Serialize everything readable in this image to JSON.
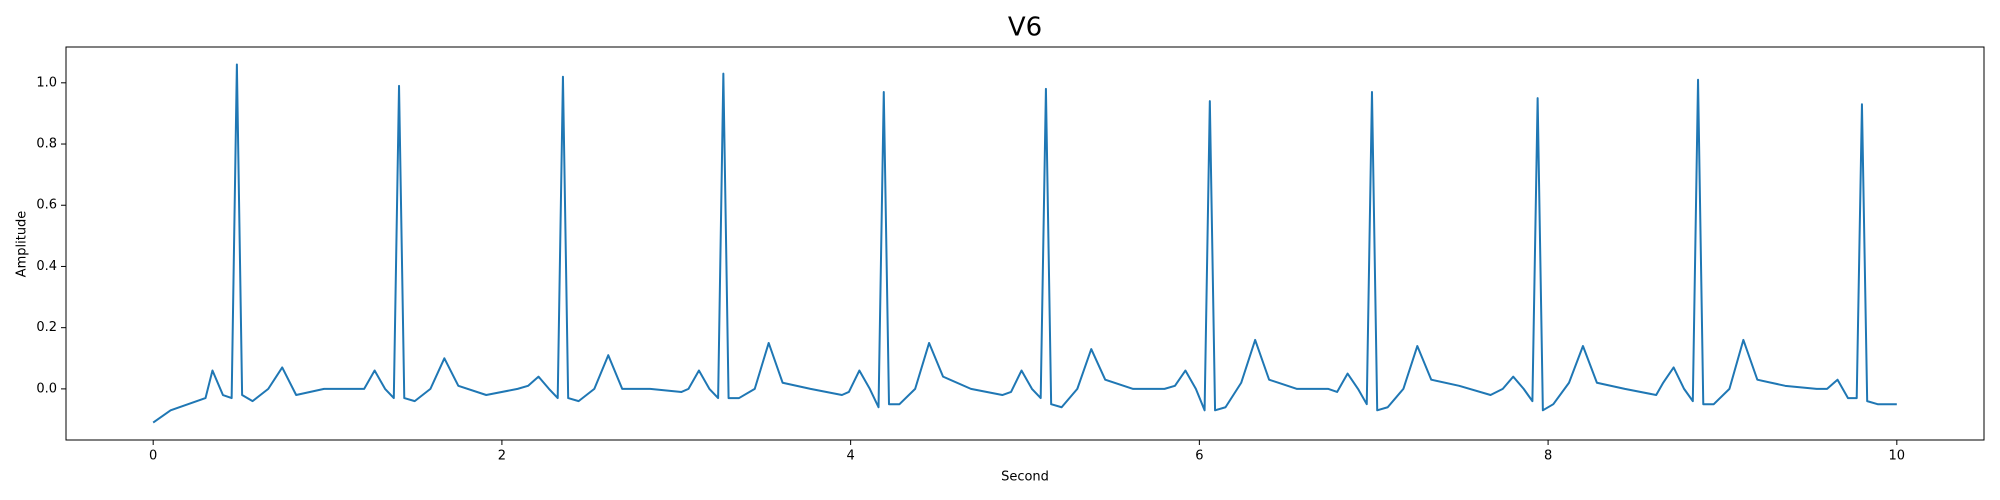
{
  "chart_data": {
    "type": "line",
    "title": "V6",
    "xlabel": "Second",
    "ylabel": "Amplitude",
    "color": "#1f77b4",
    "x": [
      0,
      0.1,
      0.2,
      0.3,
      0.34,
      0.4,
      0.45,
      0.48,
      0.51,
      0.57,
      0.66,
      0.74,
      0.82,
      0.98,
      1.16,
      1.21,
      1.27,
      1.33,
      1.38,
      1.41,
      1.44,
      1.5,
      1.59,
      1.67,
      1.75,
      1.91,
      2.09,
      2.15,
      2.21,
      2.27,
      2.32,
      2.35,
      2.38,
      2.44,
      2.53,
      2.61,
      2.69,
      2.85,
      3.03,
      3.07,
      3.13,
      3.19,
      3.24,
      3.27,
      3.3,
      3.36,
      3.45,
      3.53,
      3.61,
      3.77,
      3.95,
      3.99,
      4.05,
      4.11,
      4.16,
      4.19,
      4.22,
      4.28,
      4.37,
      4.45,
      4.53,
      4.69,
      4.87,
      4.92,
      4.98,
      5.04,
      5.09,
      5.12,
      5.15,
      5.21,
      5.3,
      5.38,
      5.46,
      5.62,
      5.8,
      5.86,
      5.92,
      5.98,
      6.03,
      6.06,
      6.09,
      6.15,
      6.24,
      6.32,
      6.4,
      6.56,
      6.74,
      6.79,
      6.85,
      6.91,
      6.96,
      6.99,
      7.02,
      7.08,
      7.17,
      7.25,
      7.33,
      7.49,
      7.67,
      7.74,
      7.8,
      7.86,
      7.91,
      7.94,
      7.97,
      8.03,
      8.12,
      8.2,
      8.28,
      8.44,
      8.62,
      8.66,
      8.72,
      8.78,
      8.83,
      8.86,
      8.89,
      8.95,
      9.04,
      9.12,
      9.2,
      9.36,
      9.54,
      9.6,
      9.66,
      9.72,
      9.77,
      9.8,
      9.83,
      9.89,
      10.0
    ],
    "values": [
      -0.11,
      -0.07,
      -0.05,
      -0.03,
      0.06,
      -0.02,
      -0.03,
      1.06,
      -0.02,
      -0.04,
      0.0,
      0.07,
      -0.02,
      0.0,
      0.0,
      0.0,
      0.06,
      0.0,
      -0.03,
      0.99,
      -0.03,
      -0.04,
      0.0,
      0.1,
      0.01,
      -0.02,
      0.0,
      0.01,
      0.04,
      0.0,
      -0.03,
      1.02,
      -0.03,
      -0.04,
      0.0,
      0.11,
      0.0,
      0.0,
      -0.01,
      0.0,
      0.06,
      0.0,
      -0.03,
      1.03,
      -0.03,
      -0.03,
      0.0,
      0.15,
      0.02,
      0.0,
      -0.02,
      -0.01,
      0.06,
      0.0,
      -0.06,
      0.97,
      -0.05,
      -0.05,
      0.0,
      0.15,
      0.04,
      0.0,
      -0.02,
      -0.01,
      0.06,
      0.0,
      -0.03,
      0.98,
      -0.05,
      -0.06,
      0.0,
      0.13,
      0.03,
      0.0,
      0.0,
      0.01,
      0.06,
      0.0,
      -0.07,
      0.94,
      -0.07,
      -0.06,
      0.02,
      0.16,
      0.03,
      0.0,
      0.0,
      -0.01,
      0.05,
      0.0,
      -0.05,
      0.97,
      -0.07,
      -0.06,
      0.0,
      0.14,
      0.03,
      0.01,
      -0.02,
      0.0,
      0.04,
      0.0,
      -0.04,
      0.95,
      -0.07,
      -0.05,
      0.02,
      0.14,
      0.02,
      0.0,
      -0.02,
      0.02,
      0.07,
      0.0,
      -0.04,
      1.01,
      -0.05,
      -0.05,
      0.0,
      0.16,
      0.03,
      0.01,
      0.0,
      0.0,
      0.03,
      -0.03,
      -0.03,
      0.93,
      -0.04,
      -0.05,
      -0.05
    ],
    "xlim": [
      -0.5,
      10.5
    ],
    "ylim": [
      -0.167,
      1.117
    ],
    "xticks": [
      0,
      2,
      4,
      6,
      8,
      10
    ],
    "yticks": [
      {
        "value": 0,
        "label": "0.0"
      },
      0.2,
      0.4,
      0.6,
      0.8,
      {
        "value": 1,
        "label": "1.0"
      }
    ]
  }
}
